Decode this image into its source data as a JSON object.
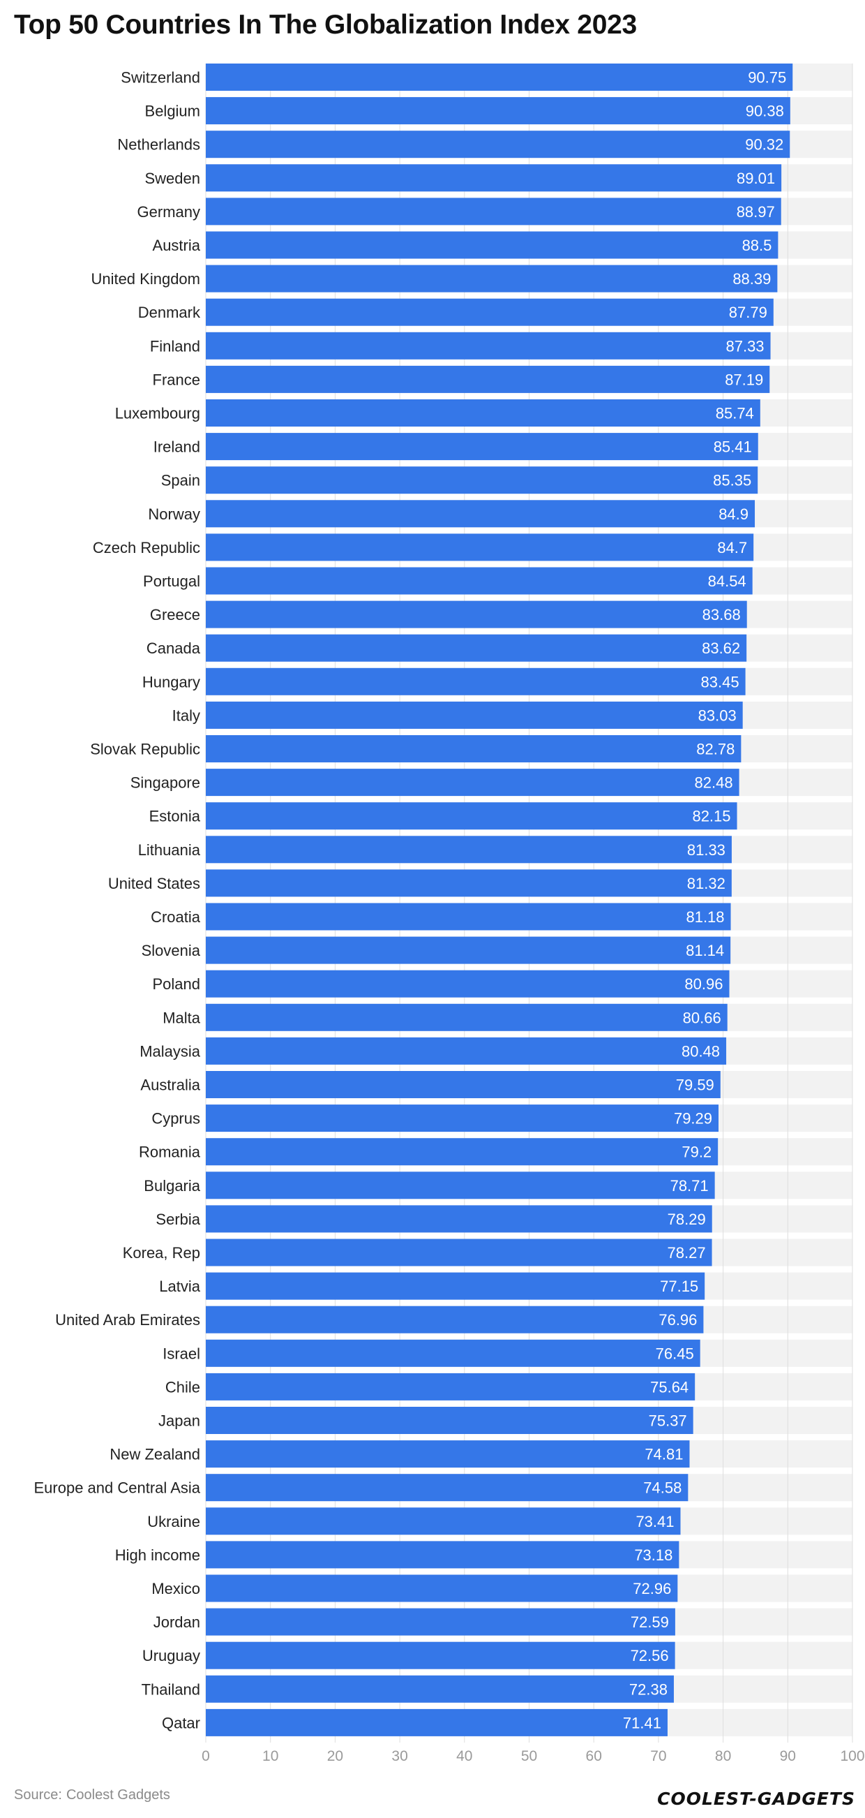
{
  "chart_data": {
    "type": "bar",
    "orientation": "horizontal",
    "title": "Top 50 Countries In The Globalization Index 2023",
    "xlim": [
      0,
      100
    ],
    "x_ticks": [
      0,
      10,
      20,
      30,
      40,
      50,
      60,
      70,
      80,
      90,
      100
    ],
    "grid": true,
    "categories": [
      "Switzerland",
      "Belgium",
      "Netherlands",
      "Sweden",
      "Germany",
      "Austria",
      "United Kingdom",
      "Denmark",
      "Finland",
      "France",
      "Luxembourg",
      "Ireland",
      "Spain",
      "Norway",
      "Czech Republic",
      "Portugal",
      "Greece",
      "Canada",
      "Hungary",
      "Italy",
      "Slovak Republic",
      "Singapore",
      "Estonia",
      "Lithuania",
      "United States",
      "Croatia",
      "Slovenia",
      "Poland",
      "Malta",
      "Malaysia",
      "Australia",
      "Cyprus",
      "Romania",
      "Bulgaria",
      "Serbia",
      "Korea, Rep",
      "Latvia",
      "United Arab Emirates",
      "Israel",
      "Chile",
      "Japan",
      "New Zealand",
      "Europe and Central Asia",
      "Ukraine",
      "High income",
      "Mexico",
      "Jordan",
      "Uruguay",
      "Thailand",
      "Qatar"
    ],
    "values": [
      90.75,
      90.38,
      90.32,
      89.01,
      88.97,
      88.5,
      88.39,
      87.79,
      87.33,
      87.19,
      85.74,
      85.41,
      85.35,
      84.9,
      84.7,
      84.54,
      83.68,
      83.62,
      83.45,
      83.03,
      82.78,
      82.48,
      82.15,
      81.33,
      81.32,
      81.18,
      81.14,
      80.96,
      80.66,
      80.48,
      79.59,
      79.29,
      79.2,
      78.71,
      78.29,
      78.27,
      77.15,
      76.96,
      76.45,
      75.64,
      75.37,
      74.81,
      74.58,
      73.41,
      73.18,
      72.96,
      72.59,
      72.56,
      72.38,
      71.41
    ],
    "bar_color": "#3577e8",
    "track_color": "#f2f2f2"
  },
  "footer": {
    "source_prefix": "Source:",
    "source_name": "Coolest Gadgets",
    "brand": "COOLEST-GADGETS"
  }
}
